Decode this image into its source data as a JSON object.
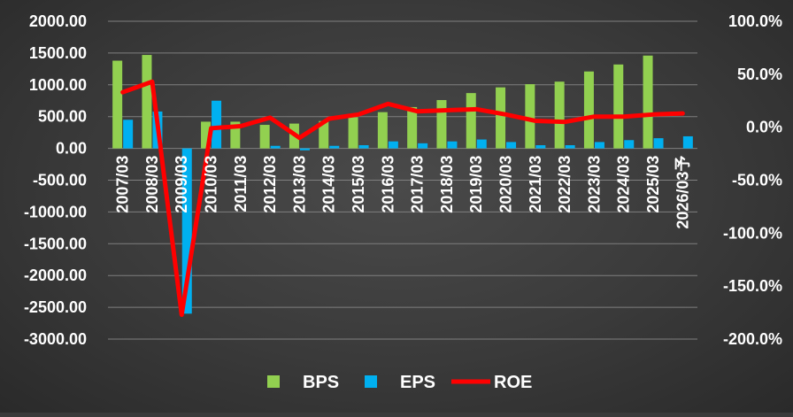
{
  "chart_data": {
    "type": "bar",
    "categories": [
      "2007/03",
      "2008/03",
      "2009/03",
      "2010/03",
      "2011/03",
      "2012/03",
      "2013/03",
      "2014/03",
      "2015/03",
      "2016/03",
      "2017/03",
      "2018/03",
      "2019/03",
      "2020/03",
      "2021/03",
      "2022/03",
      "2023/03",
      "2024/03",
      "2025/03",
      "2026/03予"
    ],
    "series": [
      {
        "name": "BPS",
        "type": "bar",
        "axis": "left",
        "color": "#92d050",
        "values": [
          1380,
          1470,
          0,
          420,
          420,
          370,
          390,
          430,
          490,
          570,
          650,
          760,
          870,
          960,
          1010,
          1050,
          1210,
          1320,
          1460,
          null
        ]
      },
      {
        "name": "EPS",
        "type": "bar",
        "axis": "left",
        "color": "#00b0f0",
        "values": [
          450,
          580,
          -2600,
          750,
          0,
          40,
          -30,
          40,
          50,
          110,
          80,
          110,
          140,
          100,
          50,
          50,
          100,
          130,
          160,
          190
        ]
      },
      {
        "name": "ROE",
        "type": "line",
        "axis": "right",
        "color": "#ff0000",
        "values": [
          33,
          43,
          -177,
          -1,
          1,
          9,
          -10,
          8,
          12,
          22,
          15,
          16,
          17,
          12,
          6,
          5,
          10,
          10,
          12,
          13
        ]
      }
    ],
    "y_left": {
      "min": -3000,
      "max": 2000,
      "ticks": [
        2000,
        1500,
        1000,
        500,
        0,
        -500,
        -1000,
        -1500,
        -2000,
        -2500,
        -3000
      ],
      "tick_labels": [
        "2000.00",
        "1500.00",
        "1000.00",
        "500.00",
        "0.00",
        "-500.00",
        "-1000.00",
        "-1500.00",
        "-2000.00",
        "-2500.00",
        "-3000.00"
      ]
    },
    "y_right": {
      "min": -200,
      "max": 100,
      "ticks": [
        100,
        50,
        0,
        -50,
        -100,
        -150,
        -200
      ],
      "tick_labels": [
        "100.0%",
        "50.0%",
        "0.0%",
        "-50.0%",
        "-100.0%",
        "-150.0%",
        "-200.0%"
      ]
    },
    "grid": true,
    "legend": {
      "position": "bottom",
      "entries": [
        "BPS",
        "EPS",
        "ROE"
      ]
    },
    "colors": {
      "background": "#3a3a3a",
      "gridline": "#7f7f7f",
      "text": "#ffffff"
    }
  }
}
